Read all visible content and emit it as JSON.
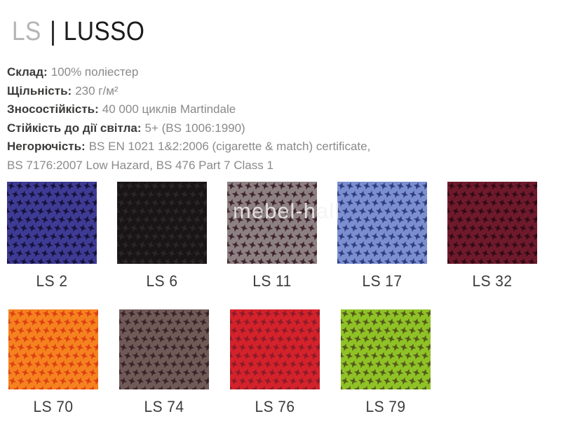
{
  "header": {
    "collection_code": "LS",
    "divider": "|",
    "collection_name": "LUSSO"
  },
  "specs": [
    {
      "label": "Склад:",
      "value": "100% поліестер"
    },
    {
      "label": "Щільність:",
      "value": "230 г/м²"
    },
    {
      "label": "Зносостійкість:",
      "value": "40 000 циклів Martindale"
    },
    {
      "label": "Стійкість до дії світла:",
      "value": "5+ (BS 1006:1990)"
    },
    {
      "label": "Негорючість:",
      "value": "BS EN 1021 1&2:2006 (cigarette & match) certificate,"
    },
    {
      "label": "",
      "value": "BS 7176:2007 Low Hazard, BS 476 Part 7 Class 1"
    }
  ],
  "watermark": {
    "text": "mebel-hall"
  },
  "swatch_rows": [
    {
      "swatches": [
        {
          "code": "LS 2",
          "base_color": "#3e3b95",
          "pattern_color": "#16123c"
        },
        {
          "code": "LS 6",
          "base_color": "#191516",
          "pattern_color": "#2b2526"
        },
        {
          "code": "LS 11",
          "base_color": "#8d8082",
          "pattern_color": "#3f2430"
        },
        {
          "code": "LS 17",
          "base_color": "#7b8fd0",
          "pattern_color": "#2e3d7f"
        },
        {
          "code": "LS 32",
          "base_color": "#6f1a2c",
          "pattern_color": "#330a16"
        }
      ]
    },
    {
      "swatches": [
        {
          "code": "LS 70",
          "base_color": "#f5821f",
          "pattern_color": "#dd3f12"
        },
        {
          "code": "LS 74",
          "base_color": "#6f5a57",
          "pattern_color": "#3b2127"
        },
        {
          "code": "LS 76",
          "base_color": "#d4222b",
          "pattern_color": "#8c1b29"
        },
        {
          "code": "LS 79",
          "base_color": "#8fc226",
          "pattern_color": "#53591b"
        }
      ]
    }
  ]
}
